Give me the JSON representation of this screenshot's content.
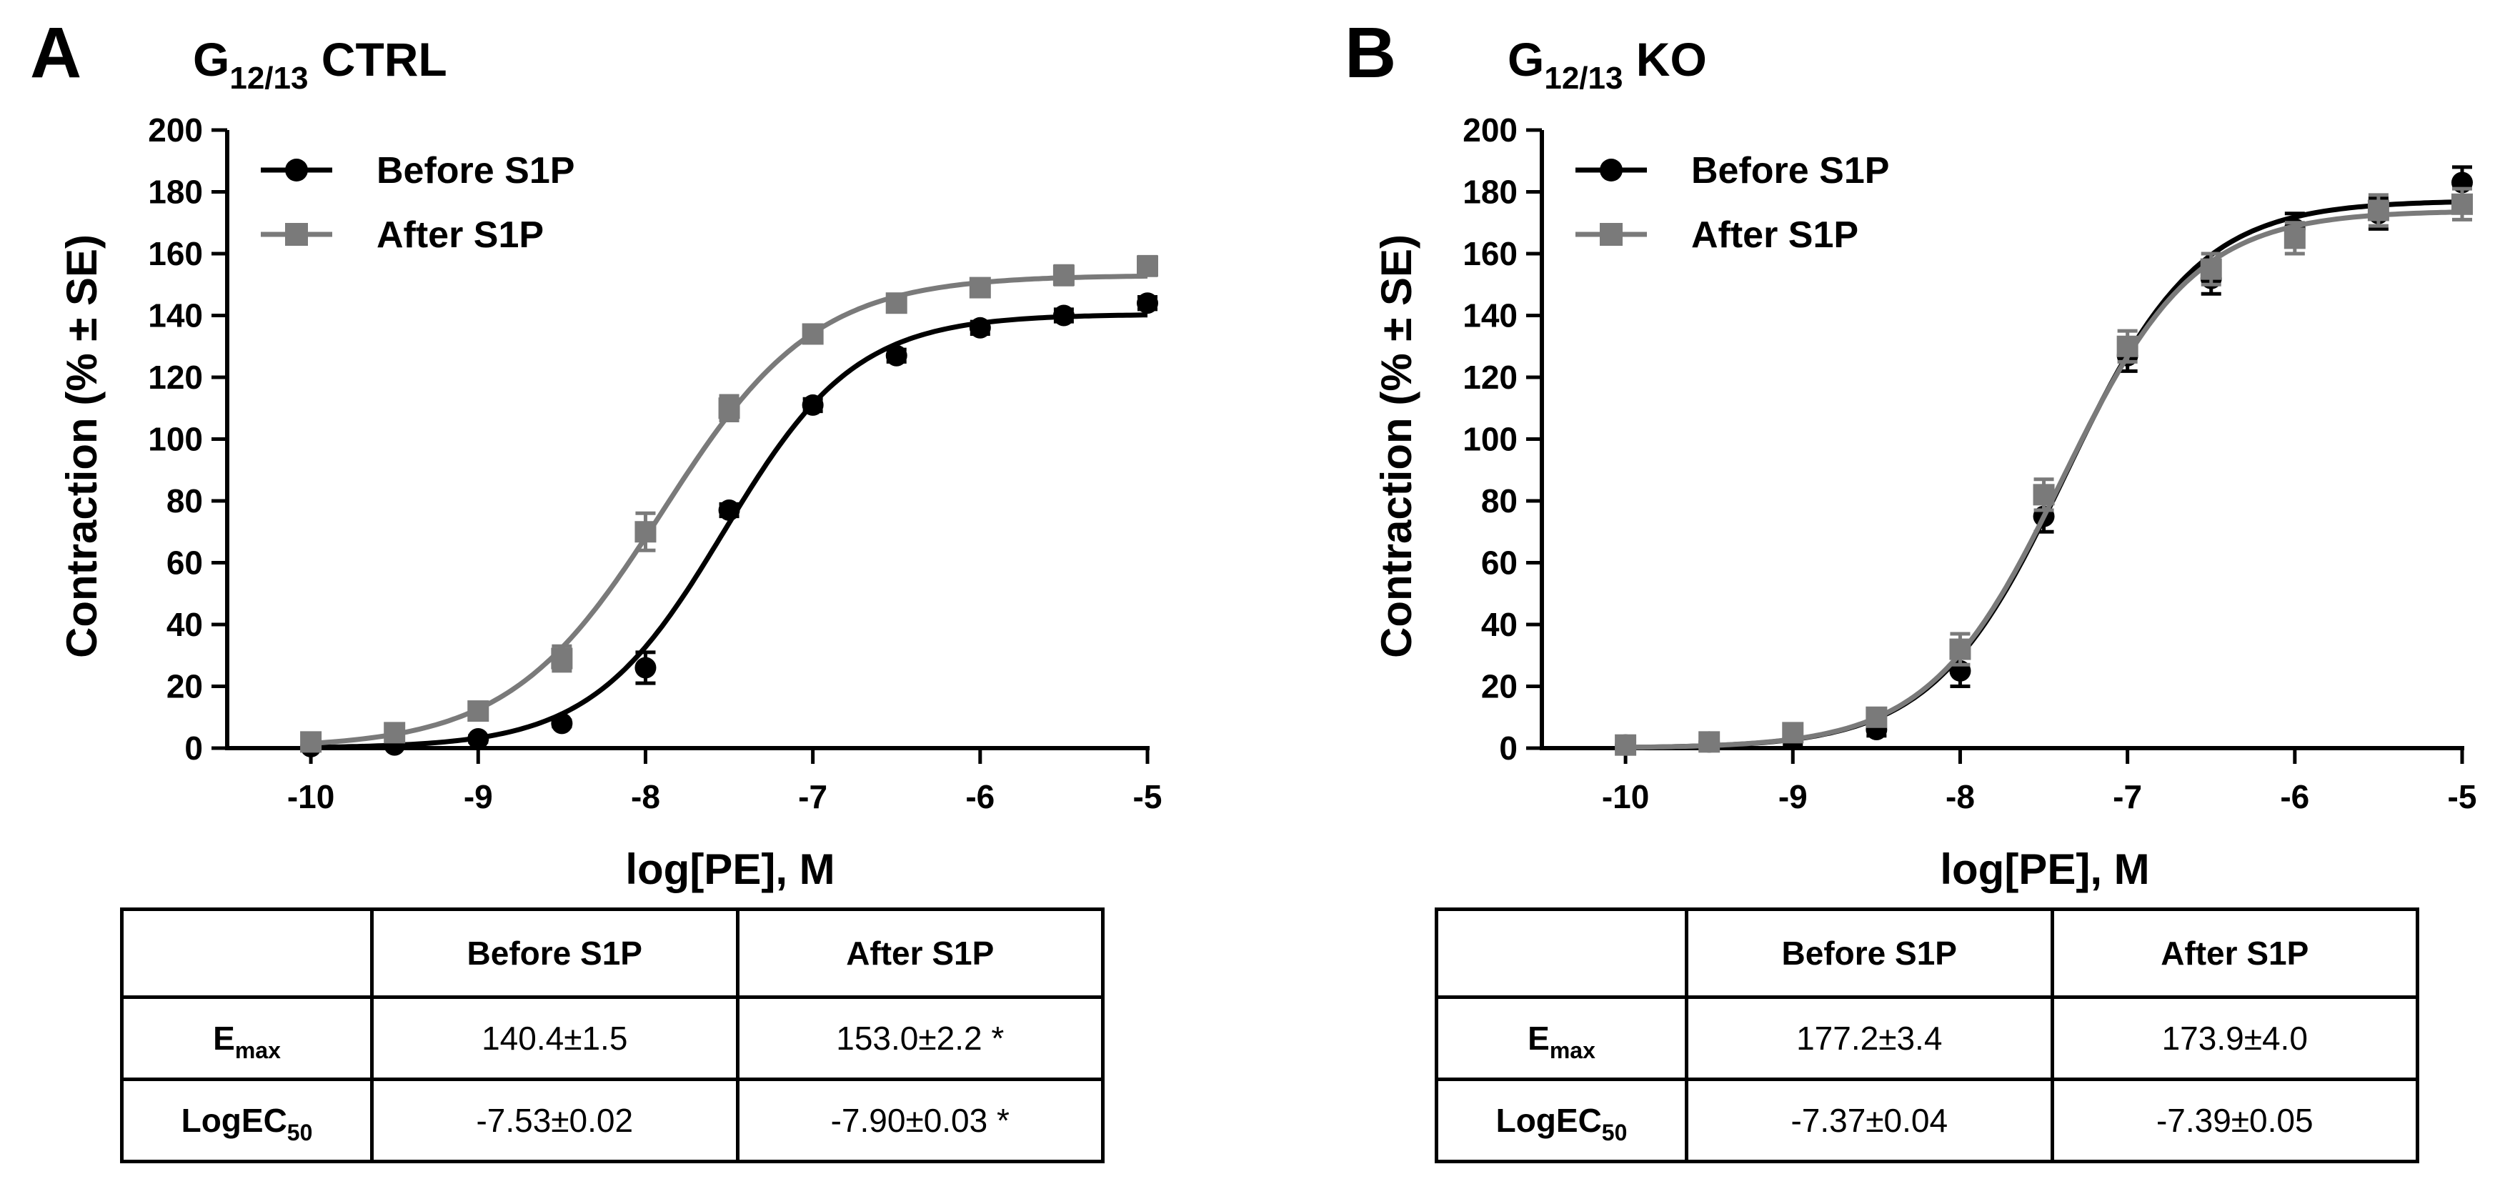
{
  "panels": [
    {
      "letter": "A",
      "title": {
        "prefix": "G",
        "sub": "12/13",
        "suffix": " CTRL"
      },
      "table": {
        "headers": [
          "",
          "Before S1P",
          "After S1P"
        ],
        "rows": [
          {
            "label": "E",
            "label_sub": "max",
            "values": [
              "140.4±1.5",
              "153.0±2.2 *"
            ]
          },
          {
            "label": "LogEC",
            "label_sub": "50",
            "values": [
              "-7.53±0.02",
              "-7.90±0.03 *"
            ]
          }
        ]
      }
    },
    {
      "letter": "B",
      "title": {
        "prefix": "G",
        "sub": "12/13",
        "suffix": " KO"
      },
      "table": {
        "headers": [
          "",
          "Before S1P",
          "After S1P"
        ],
        "rows": [
          {
            "label": "E",
            "label_sub": "max",
            "values": [
              "177.2±3.4",
              "173.9±4.0"
            ]
          },
          {
            "label": "LogEC",
            "label_sub": "50",
            "values": [
              "-7.37±0.04",
              "-7.39±0.05"
            ]
          }
        ]
      }
    }
  ],
  "colors": {
    "before": "#000000",
    "after": "#7a7a7a"
  },
  "chart_data": [
    {
      "type": "scatter",
      "title": "G12/13 CTRL",
      "xlabel": "log[PE], M",
      "ylabel": "Contraction (% ± SE)",
      "xlim": [
        -10.5,
        -5
      ],
      "ylim": [
        0,
        200
      ],
      "xticks": [
        "-10",
        "-9",
        "-8",
        "-7",
        "-6",
        "-5"
      ],
      "yticks": [
        "0",
        "20",
        "40",
        "60",
        "80",
        "100",
        "120",
        "140",
        "160",
        "180",
        "200"
      ],
      "legend": "top-left",
      "series": [
        {
          "name": "Before S1P",
          "marker": "circle",
          "color": "#000000",
          "x": [
            -10,
            -9.5,
            -9,
            -8.5,
            -8,
            -7.5,
            -7,
            -6.5,
            -6,
            -5.5,
            -5
          ],
          "y": [
            0.5,
            1,
            3,
            8,
            26,
            77,
            111,
            127,
            136,
            140,
            144
          ],
          "err": [
            1,
            1,
            1,
            1,
            5,
            2,
            2,
            2,
            2,
            2,
            2
          ],
          "fit": {
            "bottom": 0,
            "top": 140.4,
            "logEC50": -7.53,
            "hill": 1.1
          }
        },
        {
          "name": "After S1P",
          "marker": "square",
          "color": "#7a7a7a",
          "x": [
            -10,
            -9.5,
            -9,
            -8.5,
            -8,
            -7.5,
            -7,
            -6.5,
            -6,
            -5.5,
            -5
          ],
          "y": [
            2,
            5,
            12,
            29,
            70,
            110,
            134,
            144,
            149,
            153,
            156
          ],
          "err": [
            1,
            1,
            2,
            4,
            6,
            4,
            2,
            2,
            2,
            3,
            3
          ],
          "fit": {
            "bottom": 0,
            "top": 153.0,
            "logEC50": -7.9,
            "hill": 0.95
          }
        }
      ]
    },
    {
      "type": "scatter",
      "title": "G12/13 KO",
      "xlabel": "log[PE], M",
      "ylabel": "Contraction (% ± SE)",
      "xlim": [
        -10.5,
        -5
      ],
      "ylim": [
        0,
        200
      ],
      "xticks": [
        "-10",
        "-9",
        "-8",
        "-7",
        "-6",
        "-5"
      ],
      "yticks": [
        "0",
        "20",
        "40",
        "60",
        "80",
        "100",
        "120",
        "140",
        "160",
        "180",
        "200"
      ],
      "legend": "top-left",
      "series": [
        {
          "name": "Before S1P",
          "marker": "circle",
          "color": "#000000",
          "x": [
            -10,
            -9.5,
            -9,
            -8.5,
            -8,
            -7.5,
            -7,
            -6.5,
            -6,
            -5.5,
            -5
          ],
          "y": [
            1,
            2,
            3,
            6,
            25,
            75,
            127,
            152,
            168,
            173,
            183
          ],
          "err": [
            2,
            2,
            2,
            2,
            5,
            5,
            5,
            5,
            5,
            5,
            5
          ],
          "fit": {
            "bottom": 0,
            "top": 177.2,
            "logEC50": -7.37,
            "hill": 1.1
          }
        },
        {
          "name": "After S1P",
          "marker": "square",
          "color": "#7a7a7a",
          "x": [
            -10,
            -9.5,
            -9,
            -8.5,
            -8,
            -7.5,
            -7,
            -6.5,
            -6,
            -5.5,
            -5
          ],
          "y": [
            1,
            2,
            5,
            10,
            32,
            82,
            130,
            155,
            165,
            174,
            176
          ],
          "err": [
            2,
            2,
            2,
            2,
            5,
            5,
            5,
            5,
            5,
            5,
            5
          ],
          "fit": {
            "bottom": 0,
            "top": 173.9,
            "logEC50": -7.39,
            "hill": 1.1
          }
        }
      ]
    }
  ]
}
